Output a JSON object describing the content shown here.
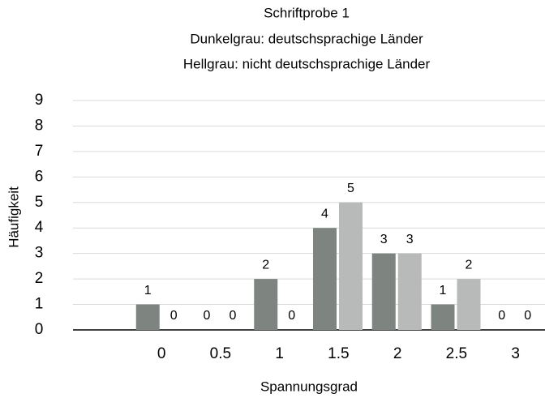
{
  "chart_data": {
    "type": "bar",
    "title": "Schriftprobe 1",
    "subtitle": [
      "Dunkelgrau: deutschsprachige Länder",
      "Hellgrau: nicht deutschsprachige Länder"
    ],
    "x_label": "Spannungsgrad",
    "y_label": "Häufigkeit",
    "categories": [
      null,
      "0",
      "0.5",
      "1",
      "1.5",
      "2",
      "2.5",
      "3"
    ],
    "series": [
      {
        "color": "#7e8581",
        "values": [
          null,
          1,
          0,
          2,
          4,
          3,
          1,
          0
        ]
      },
      {
        "color": "#b8b9b9",
        "values": [
          null,
          0,
          0,
          0,
          5,
          3,
          2,
          0
        ]
      }
    ],
    "ylim": [
      0,
      9
    ],
    "yticks": [
      0,
      1,
      2,
      3,
      4,
      5,
      6,
      7,
      8,
      9
    ],
    "grid": true
  }
}
